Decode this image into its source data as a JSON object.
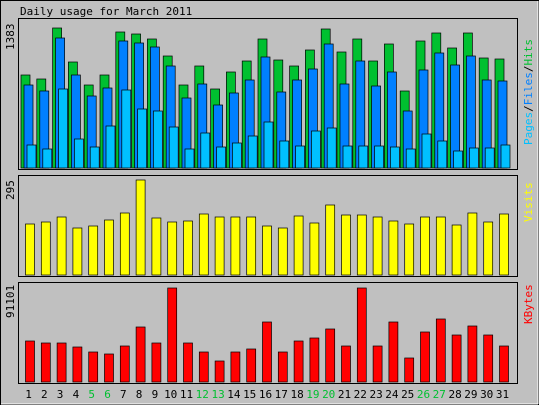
{
  "title": "Daily usage for March 2011",
  "colors": {
    "background": "#C0C0C0",
    "panel": "#C0C0C0",
    "hits": "#00C030",
    "files": "#0080FF",
    "pages": "#00C0FF",
    "visits": "#FFFF00",
    "kbytes": "#FF0000",
    "weekend_day": "#00C030",
    "weekday": "#000000"
  },
  "chart_data": [
    {
      "type": "bar",
      "panel": "hits-files-pages",
      "y_max_label": "1383",
      "ylim": [
        0,
        1383
      ],
      "legend": {
        "pages": "Pages",
        "files": "Files",
        "hits": "Hits",
        "sep1": "/",
        "sep2": "/"
      },
      "categories": [
        "1",
        "2",
        "3",
        "4",
        "5",
        "6",
        "7",
        "8",
        "9",
        "10",
        "11",
        "12",
        "13",
        "14",
        "15",
        "16",
        "17",
        "18",
        "19",
        "20",
        "21",
        "22",
        "23",
        "24",
        "25",
        "26",
        "27",
        "28",
        "29",
        "30",
        "31"
      ],
      "series": [
        {
          "name": "Hits",
          "color": "#00C030",
          "values": [
            880,
            840,
            1330,
            1000,
            790,
            880,
            1290,
            1270,
            1220,
            1060,
            790,
            970,
            750,
            910,
            1010,
            1220,
            1020,
            970,
            1120,
            1320,
            1100,
            1220,
            1010,
            1170,
            730,
            1200,
            1280,
            1140,
            1280,
            1040,
            1030
          ]
        },
        {
          "name": "Files",
          "color": "#0080FF",
          "values": [
            790,
            730,
            1230,
            880,
            680,
            760,
            1200,
            1180,
            1150,
            970,
            660,
            800,
            600,
            710,
            830,
            1050,
            720,
            830,
            940,
            1170,
            800,
            1010,
            780,
            910,
            540,
            930,
            1090,
            980,
            1060,
            830,
            820
          ]
        },
        {
          "name": "Pages",
          "color": "#00C0FF",
          "values": [
            220,
            180,
            750,
            270,
            200,
            400,
            740,
            560,
            540,
            390,
            180,
            330,
            200,
            240,
            300,
            440,
            260,
            210,
            350,
            380,
            210,
            210,
            210,
            200,
            180,
            320,
            260,
            160,
            190,
            190,
            220
          ]
        }
      ]
    },
    {
      "type": "bar",
      "panel": "visits",
      "y_max_label": "295",
      "ylim": [
        0,
        295
      ],
      "legend": {
        "visits": "Visits"
      },
      "categories": [
        "1",
        "2",
        "3",
        "4",
        "5",
        "6",
        "7",
        "8",
        "9",
        "10",
        "11",
        "12",
        "13",
        "14",
        "15",
        "16",
        "17",
        "18",
        "19",
        "20",
        "21",
        "22",
        "23",
        "24",
        "25",
        "26",
        "27",
        "28",
        "29",
        "30",
        "31"
      ],
      "series": [
        {
          "name": "Visits",
          "color": "#FFFF00",
          "values": [
            158,
            164,
            180,
            146,
            152,
            170,
            194,
            295,
            178,
            166,
            168,
            190,
            181,
            180,
            180,
            151,
            145,
            184,
            163,
            218,
            186,
            185,
            180,
            167,
            158,
            181,
            181,
            156,
            191,
            165,
            189
          ]
        }
      ]
    },
    {
      "type": "bar",
      "panel": "kbytes",
      "y_max_label": "91101",
      "ylim": [
        0,
        91101
      ],
      "legend": {
        "kbytes": "KBytes"
      },
      "categories": [
        "1",
        "2",
        "3",
        "4",
        "5",
        "6",
        "7",
        "8",
        "9",
        "10",
        "11",
        "12",
        "13",
        "14",
        "15",
        "16",
        "17",
        "18",
        "19",
        "20",
        "21",
        "22",
        "23",
        "24",
        "25",
        "26",
        "27",
        "28",
        "29",
        "30",
        "31"
      ],
      "series": [
        {
          "name": "KBytes",
          "color": "#FF0000",
          "values": [
            40000,
            38000,
            38000,
            34000,
            29000,
            27000,
            35000,
            53000,
            38000,
            91101,
            38000,
            29000,
            20000,
            29000,
            32000,
            58000,
            29000,
            40000,
            43000,
            51000,
            35000,
            91101,
            35000,
            58000,
            23000,
            48000,
            61000,
            46000,
            54000,
            46000,
            35000
          ]
        }
      ]
    }
  ],
  "x_axis": {
    "labels": [
      "1",
      "2",
      "3",
      "4",
      "5",
      "6",
      "7",
      "8",
      "9",
      "10",
      "11",
      "12",
      "13",
      "14",
      "15",
      "16",
      "17",
      "18",
      "19",
      "20",
      "21",
      "22",
      "23",
      "24",
      "25",
      "26",
      "27",
      "28",
      "29",
      "30",
      "31"
    ],
    "weekend": [
      false,
      false,
      false,
      false,
      true,
      true,
      false,
      false,
      false,
      false,
      false,
      true,
      true,
      false,
      false,
      false,
      false,
      false,
      true,
      true,
      false,
      false,
      false,
      false,
      false,
      true,
      true,
      false,
      false,
      false,
      false
    ]
  }
}
